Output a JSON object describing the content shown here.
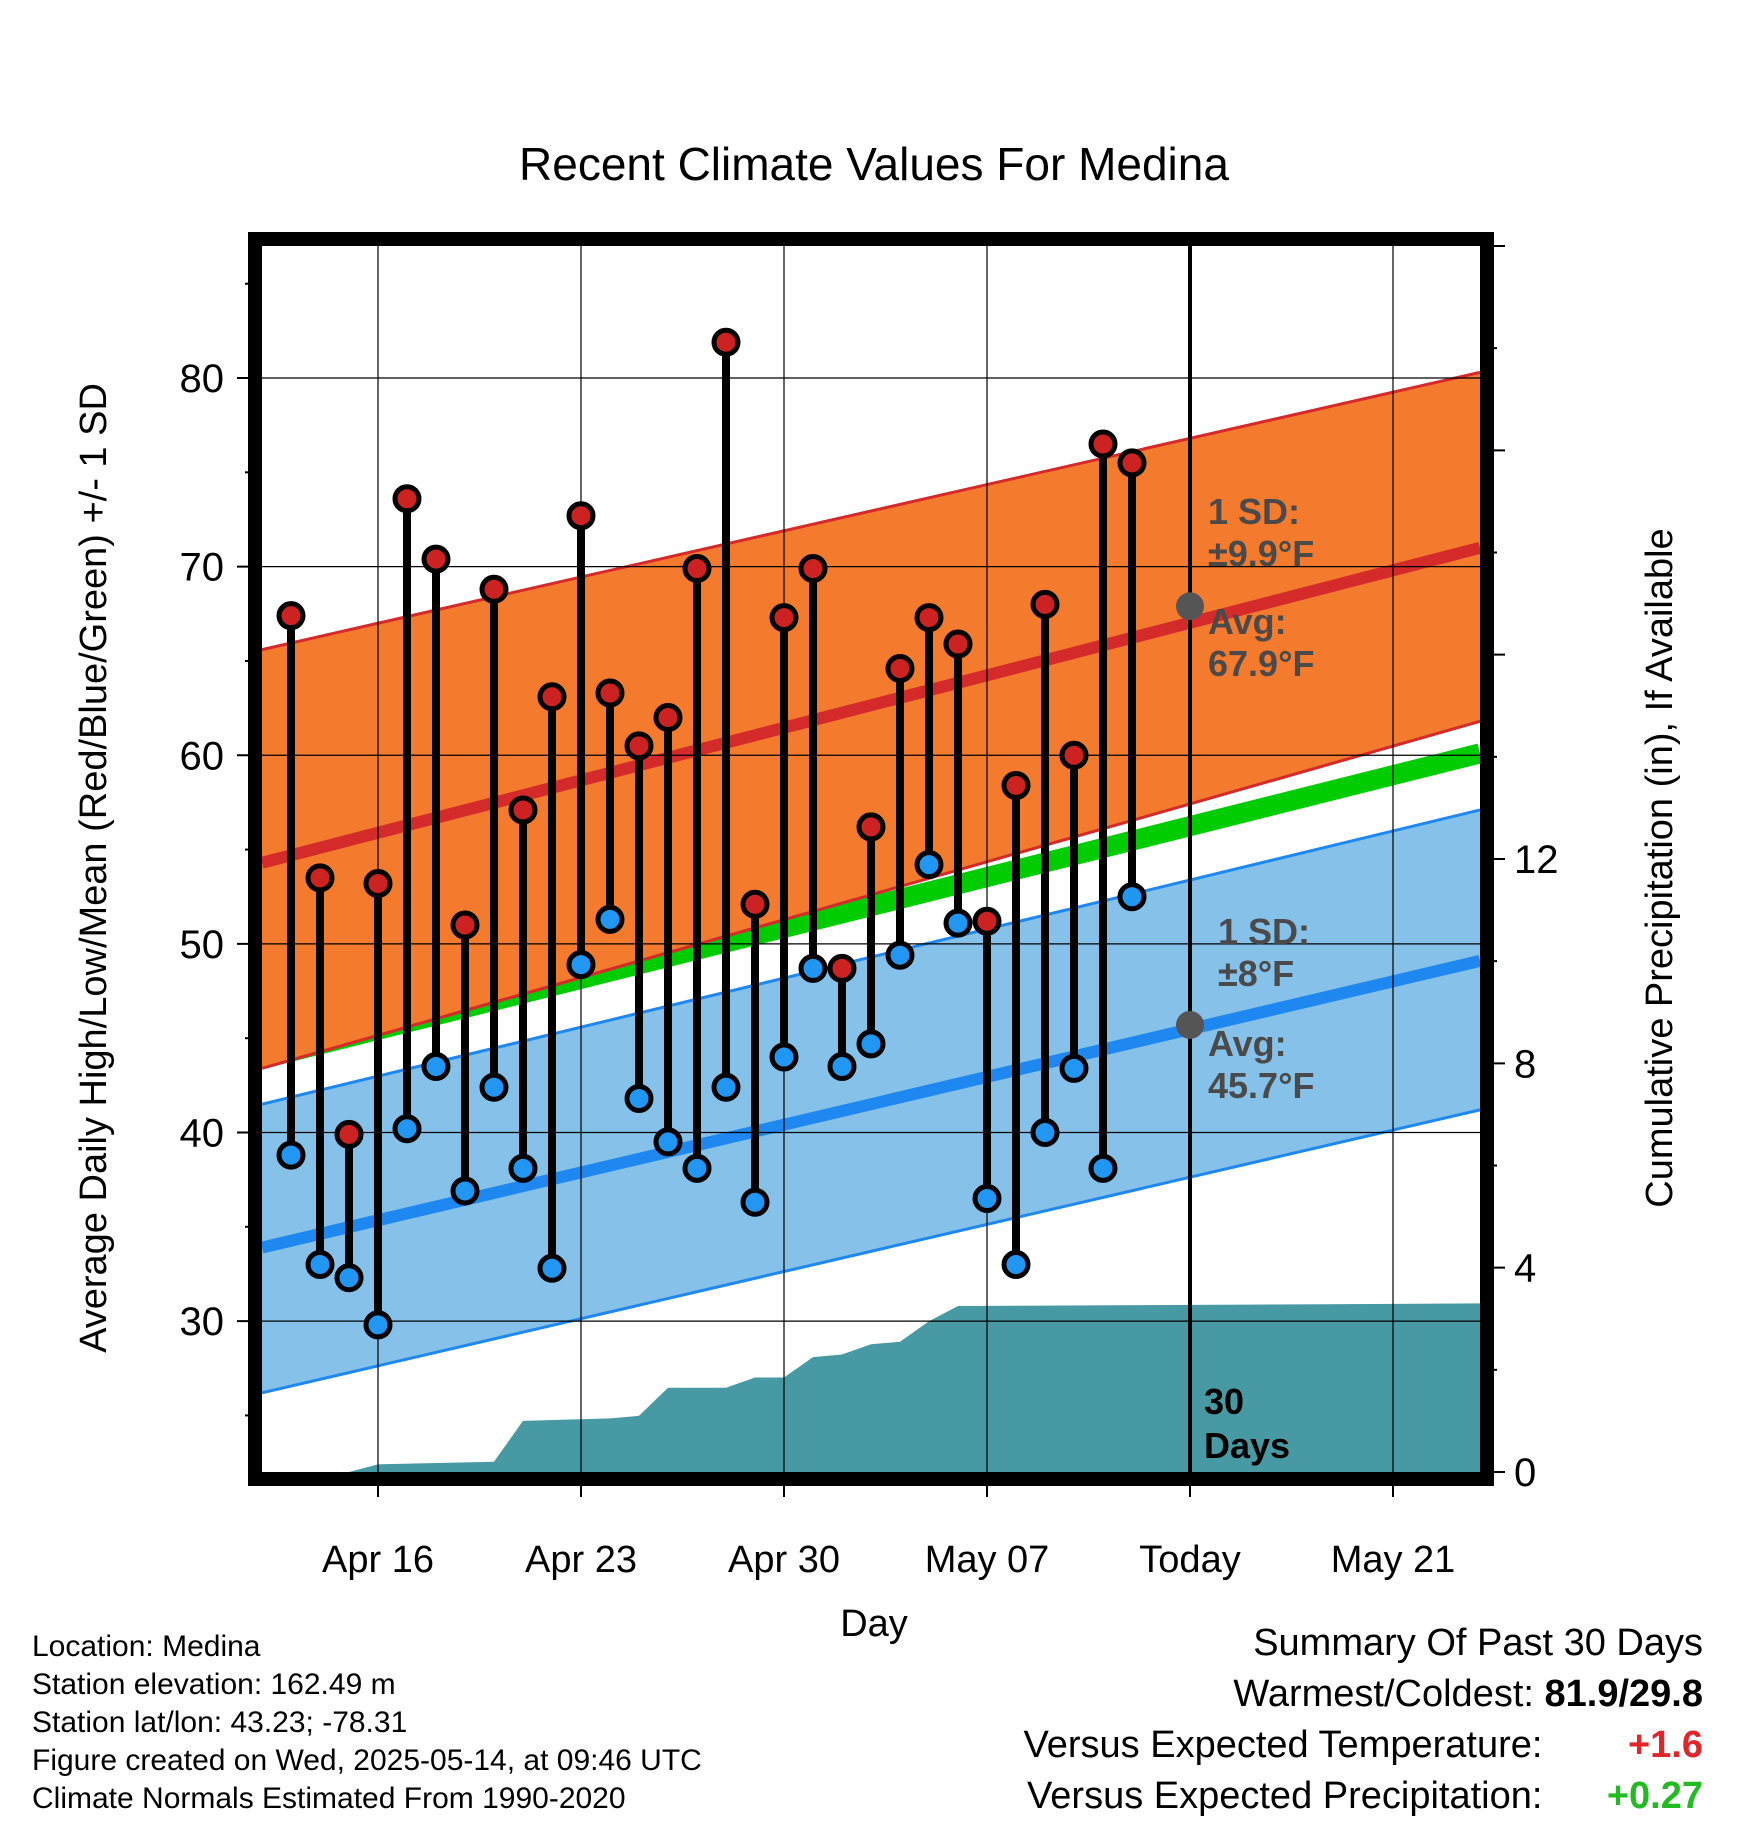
{
  "chart_data": {
    "type": "line",
    "title": "Recent Climate Values For Medina",
    "xlabel": "Day",
    "ylabel": "Average Daily High/Low/Mean (Red/Blue/Green) +/- 1 SD",
    "y2label": "Cumulative Precipitation (in), If Available",
    "ylim": [
      22,
      87
    ],
    "y2lim": [
      0,
      24
    ],
    "xlim": [
      "2025-04-12",
      "2025-05-24"
    ],
    "grid": true,
    "y_ticks": [
      30,
      40,
      50,
      60,
      70,
      80
    ],
    "y2_ticks": [
      0,
      4,
      8,
      12
    ],
    "x_ticks": [
      {
        "date": "2025-04-16",
        "label": "Apr 16"
      },
      {
        "date": "2025-04-23",
        "label": "Apr 23"
      },
      {
        "date": "2025-04-30",
        "label": "Apr 30"
      },
      {
        "date": "2025-05-07",
        "label": "May 07"
      },
      {
        "date": "2025-05-14",
        "label": "Today"
      },
      {
        "date": "2025-05-21",
        "label": "May 21"
      }
    ],
    "today": "2025-05-14",
    "period_label": [
      "30",
      "Days"
    ],
    "normals": {
      "high_mean": {
        "start": 54.3,
        "end": 71.0,
        "color": "#d42a2a"
      },
      "high_sd_band": {
        "start": [
          43.4,
          65.6
        ],
        "end": [
          61.8,
          80.3
        ],
        "color": "#f47b2e"
      },
      "mean": {
        "start": 43.9,
        "end": 60.1,
        "color": "#00cc00"
      },
      "low_mean": {
        "start": 33.9,
        "end": 49.1,
        "color": "#1e88f0"
      },
      "low_sd_band": {
        "start": [
          26.2,
          41.5
        ],
        "end": [
          41.2,
          57.1
        ],
        "color": "#85c1e9"
      }
    },
    "high_annotation": {
      "sd": "1 SD:",
      "sd_value": "±9.9°F",
      "avg": "Avg:",
      "avg_value": "67.9°F",
      "value": 67.9
    },
    "low_annotation": {
      "sd": "1 SD:",
      "sd_value": "±8°F",
      "avg": "Avg:",
      "avg_value": "45.7°F",
      "value": 45.7
    },
    "daily": {
      "dates": [
        "2025-04-13",
        "2025-04-14",
        "2025-04-15",
        "2025-04-16",
        "2025-04-17",
        "2025-04-18",
        "2025-04-19",
        "2025-04-20",
        "2025-04-21",
        "2025-04-22",
        "2025-04-23",
        "2025-04-24",
        "2025-04-25",
        "2025-04-26",
        "2025-04-27",
        "2025-04-28",
        "2025-04-29",
        "2025-04-30",
        "2025-05-01",
        "2025-05-02",
        "2025-05-03",
        "2025-05-04",
        "2025-05-05",
        "2025-05-06",
        "2025-05-07",
        "2025-05-08",
        "2025-05-09",
        "2025-05-10",
        "2025-05-11",
        "2025-05-12",
        "2025-05-13"
      ],
      "highs": [
        67.4,
        53.5,
        39.9,
        53.2,
        73.6,
        70.4,
        51.0,
        68.8,
        57.1,
        63.1,
        72.7,
        63.3,
        60.5,
        62.0,
        69.9,
        81.9,
        52.1,
        67.3,
        69.9,
        48.7,
        56.2,
        64.6,
        67.3,
        65.9,
        51.2,
        58.4,
        68.0,
        60.0,
        76.5,
        75.5,
        null
      ],
      "lows": [
        38.8,
        33.0,
        32.3,
        29.8,
        40.2,
        43.5,
        36.9,
        42.4,
        38.1,
        32.8,
        48.9,
        51.3,
        41.8,
        39.5,
        38.1,
        42.4,
        36.3,
        44.0,
        48.7,
        43.5,
        44.7,
        49.4,
        54.2,
        51.1,
        36.5,
        33.0,
        40.0,
        43.4,
        38.1,
        52.5,
        null
      ]
    },
    "precip": {
      "name": "Cumulative Precipitation",
      "color": "#4799a4",
      "dates": [
        "2025-04-12",
        "2025-04-15",
        "2025-04-16",
        "2025-04-20",
        "2025-04-21",
        "2025-04-24",
        "2025-04-25",
        "2025-04-26",
        "2025-04-28",
        "2025-04-29",
        "2025-04-30",
        "2025-05-01",
        "2025-05-02",
        "2025-05-03",
        "2025-05-04",
        "2025-05-05",
        "2025-05-06",
        "2025-05-24"
      ],
      "values": [
        0.0,
        0.0,
        0.15,
        0.2,
        1.0,
        1.05,
        1.1,
        1.65,
        1.65,
        1.85,
        1.85,
        2.25,
        2.3,
        2.5,
        2.55,
        2.95,
        3.25,
        3.3
      ]
    }
  },
  "footer": {
    "location": "Location: Medina",
    "elevation": "Station elevation: 162.49 m",
    "latlon": "Station lat/lon: 43.23; -78.31",
    "created": "Figure created on Wed, 2025-05-14, at 09:46 UTC",
    "normals": "Climate Normals Estimated From 1990-2020"
  },
  "summary": {
    "title": "Summary Of Past 30 Days",
    "warmest_coldest_label": "Warmest/Coldest:",
    "warmest_coldest_value": "81.9/29.8",
    "temp_label": "Versus Expected Temperature:",
    "temp_value": "+1.6",
    "temp_color": "#e0262b",
    "precip_label": "Versus Expected Precipitation:",
    "precip_value": "+0.27",
    "precip_color": "#22bb22"
  }
}
